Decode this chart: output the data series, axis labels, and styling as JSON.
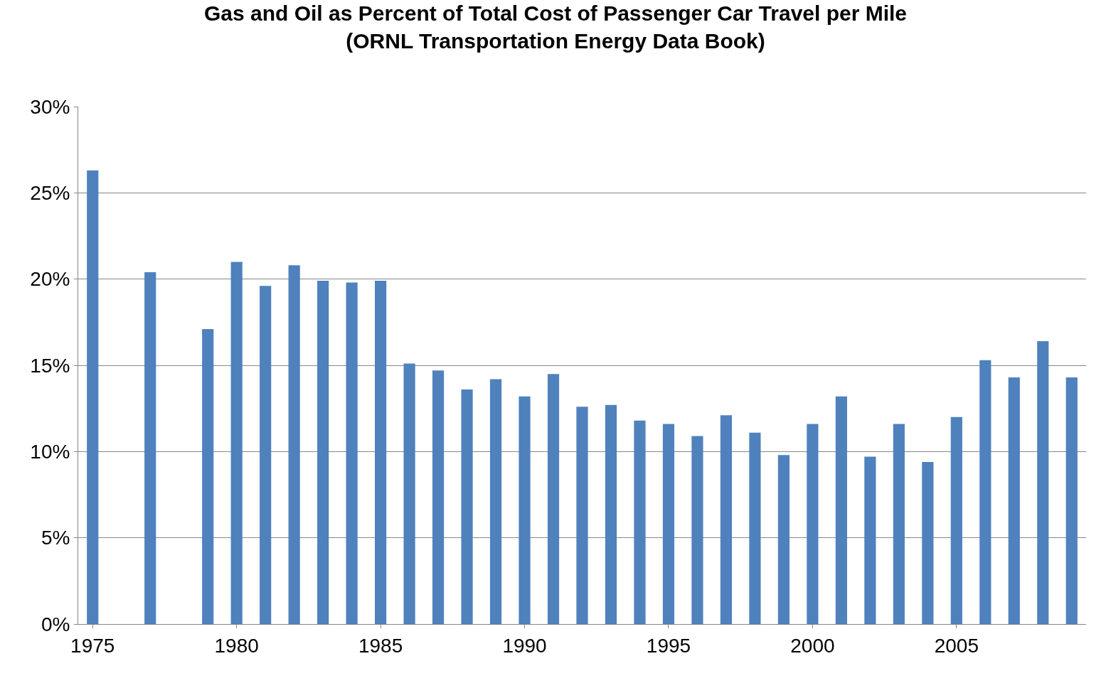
{
  "chart_data": {
    "type": "bar",
    "title": "Gas and Oil as Percent of Total Cost of Passenger Car Travel per Mile\n(ORNL Transportation Energy Data Book)",
    "x": [
      1975,
      1976,
      1977,
      1978,
      1979,
      1980,
      1981,
      1982,
      1983,
      1984,
      1985,
      1986,
      1987,
      1988,
      1989,
      1990,
      1991,
      1992,
      1993,
      1994,
      1995,
      1996,
      1997,
      1998,
      1999,
      2000,
      2001,
      2002,
      2003,
      2004,
      2005,
      2006,
      2007,
      2008,
      2009
    ],
    "values": [
      26.3,
      null,
      20.4,
      null,
      17.1,
      21.0,
      19.6,
      20.8,
      19.9,
      19.8,
      19.9,
      15.1,
      14.7,
      13.6,
      14.2,
      13.2,
      14.5,
      12.6,
      12.7,
      11.8,
      11.6,
      10.9,
      12.1,
      11.1,
      9.8,
      11.6,
      13.2,
      9.7,
      11.6,
      9.4,
      12.0,
      15.3,
      14.3,
      16.4,
      14.3
    ],
    "color": "#4f81bd",
    "xlim": [
      1974.5,
      2009.5
    ],
    "xticks": [
      1975,
      1980,
      1985,
      1990,
      1995,
      2000,
      2005
    ],
    "ylim": [
      0,
      30
    ],
    "yticks": [
      {
        "value": 0,
        "label": "0%"
      },
      {
        "value": 5,
        "label": "5%"
      },
      {
        "value": 10,
        "label": "10%"
      },
      {
        "value": 15,
        "label": "15%"
      },
      {
        "value": 20,
        "label": "20%"
      },
      {
        "value": 25,
        "label": "25%"
      },
      {
        "value": 30,
        "label": "30%"
      }
    ],
    "grid": "y"
  }
}
